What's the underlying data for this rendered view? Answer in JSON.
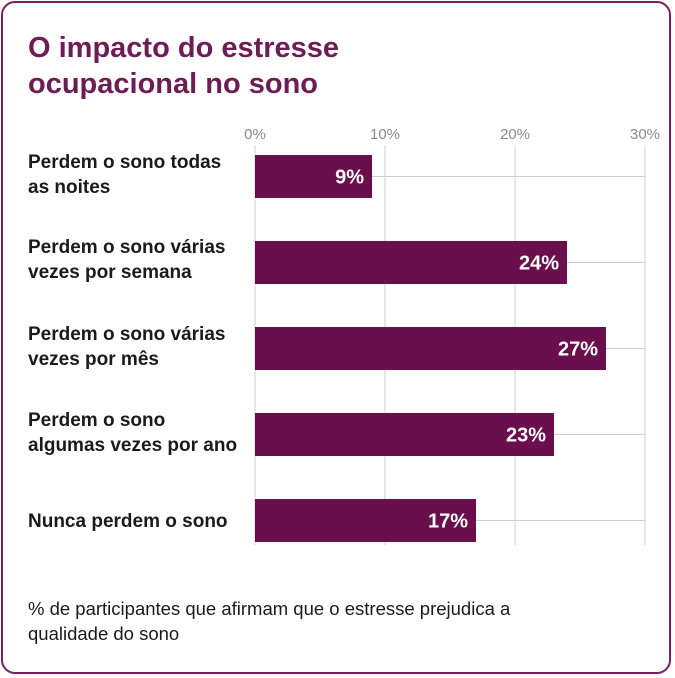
{
  "chart_data": {
    "type": "bar",
    "orientation": "horizontal",
    "title": "O impacto do estresse ocupacional no sono",
    "categories": [
      "Perdem o sono todas as noites",
      "Perdem o sono várias vezes por semana",
      "Perdem o sono várias vezes por mês",
      "Perdem o sono algumas vezes por ano",
      "Nunca perdem o sono"
    ],
    "values": [
      9,
      24,
      27,
      23,
      17
    ],
    "data_labels": [
      "9%",
      "24%",
      "27%",
      "23%",
      "17%"
    ],
    "xlim": [
      0,
      30
    ],
    "x_ticks": [
      0,
      10,
      20,
      30
    ],
    "x_tick_labels": [
      "0%",
      "10%",
      "20%",
      "30%"
    ],
    "x_axis_position": "top",
    "grid": true,
    "bar_color": "#6b0f4c",
    "xlabel": "",
    "ylabel": "",
    "footnote": "% de participantes que afirmam que o estresse prejudica a qualidade do sono"
  },
  "colors": {
    "accent": "#6d1d56",
    "border": "#7a1f5c",
    "grid": "#cfcfcf",
    "tick_text": "#8a8a8a"
  }
}
